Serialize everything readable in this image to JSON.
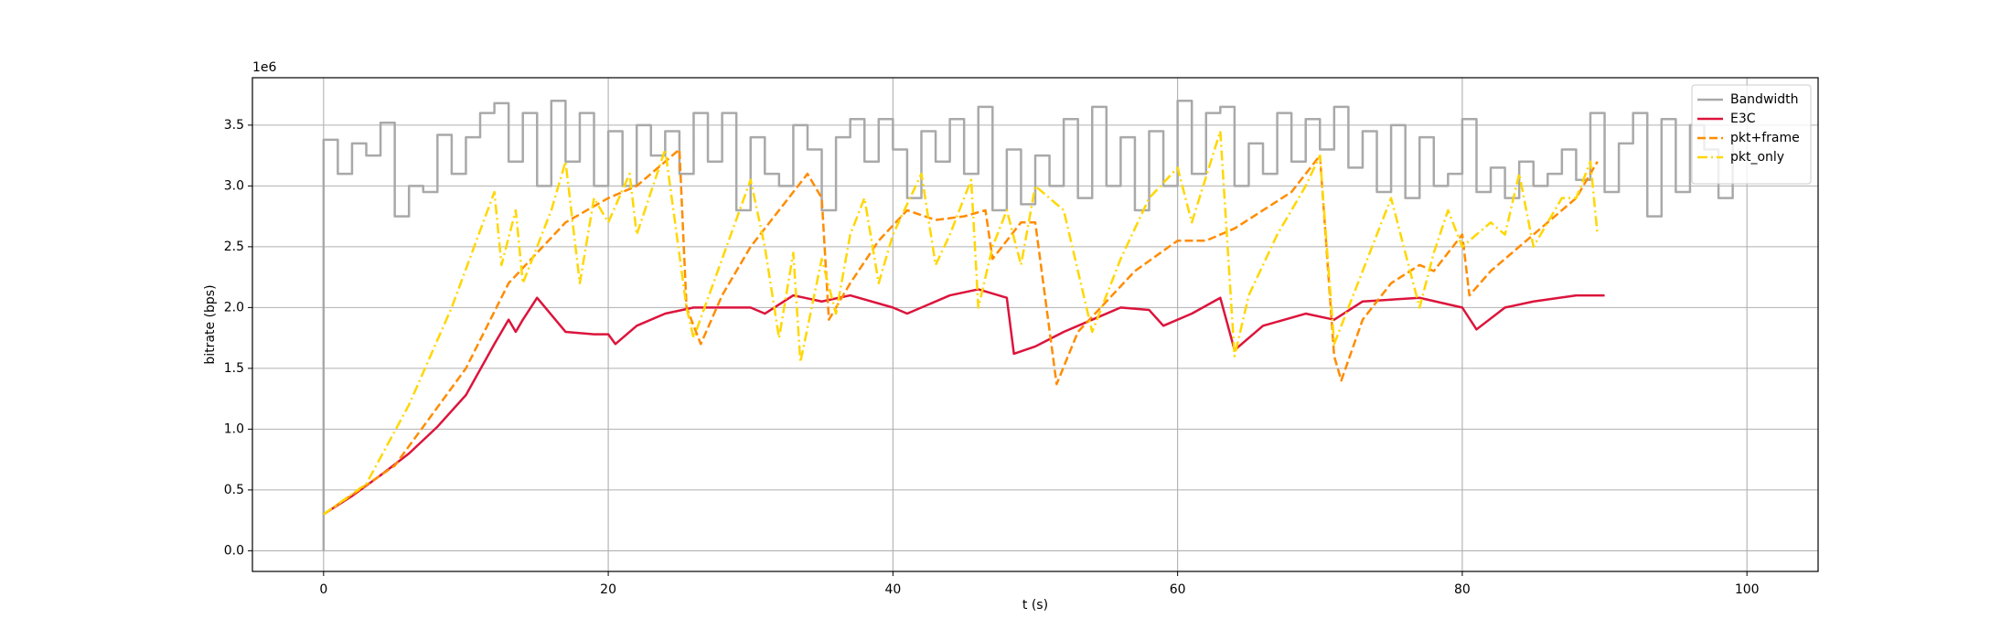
{
  "chart_data": {
    "type": "line",
    "offset_text": "1e6",
    "xlabel": "t (s)",
    "ylabel": "bitrate (bps)",
    "xlim": [
      -5,
      105
    ],
    "ylim": [
      -0.17,
      3.89
    ],
    "xticks": [
      0,
      20,
      40,
      60,
      80,
      100
    ],
    "yticks": [
      {
        "value": 0,
        "label": "0.0"
      },
      0.5,
      {
        "value": 1,
        "label": "1.0"
      },
      1.5,
      {
        "value": 2,
        "label": "2.0"
      },
      2.5,
      {
        "value": 3,
        "label": "3.0"
      },
      3.5
    ],
    "grid": true,
    "legend": "upper right",
    "series": [
      {
        "name": "Bandwidth",
        "color": "#a9a9a9",
        "linestyle": "solid",
        "drawstyle": "steps-post",
        "x": [
          0,
          0,
          1,
          2,
          3,
          4,
          5,
          6,
          7,
          8,
          9,
          10,
          11,
          12,
          13,
          14,
          15,
          16,
          17,
          18,
          19,
          20,
          21,
          22,
          23,
          24,
          25,
          26,
          27,
          28,
          29,
          30,
          31,
          32,
          33,
          34,
          35,
          36,
          37,
          38,
          39,
          40,
          41,
          42,
          43,
          44,
          45,
          46,
          47,
          48,
          49,
          50,
          51,
          52,
          53,
          54,
          55,
          56,
          57,
          58,
          59,
          60,
          61,
          62,
          63,
          64,
          65,
          66,
          67,
          68,
          69,
          70,
          71,
          72,
          73,
          74,
          75,
          76,
          77,
          78,
          79,
          80,
          81,
          82,
          83,
          84,
          85,
          86,
          87,
          88,
          89,
          90,
          91,
          92,
          93,
          94,
          95,
          96,
          97,
          98,
          99
        ],
        "values": [
          0,
          3.38,
          3.1,
          3.35,
          3.25,
          3.52,
          2.75,
          3.0,
          2.95,
          3.42,
          3.1,
          3.4,
          3.6,
          3.68,
          3.2,
          3.6,
          3.0,
          3.7,
          3.2,
          3.6,
          3.0,
          3.45,
          3.0,
          3.5,
          3.25,
          3.45,
          3.1,
          3.6,
          3.2,
          3.6,
          2.8,
          3.4,
          3.1,
          3.0,
          3.5,
          3.3,
          2.8,
          3.4,
          3.55,
          3.2,
          3.55,
          3.3,
          2.9,
          3.45,
          3.2,
          3.55,
          3.1,
          3.65,
          2.8,
          3.3,
          2.85,
          3.25,
          3.0,
          3.55,
          2.9,
          3.65,
          3.0,
          3.4,
          2.8,
          3.45,
          3.0,
          3.7,
          3.1,
          3.6,
          3.65,
          3.0,
          3.35,
          3.1,
          3.6,
          3.2,
          3.55,
          3.3,
          3.65,
          3.15,
          3.45,
          2.95,
          3.5,
          2.9,
          3.4,
          3.0,
          3.1,
          3.55,
          2.95,
          3.15,
          2.9,
          3.2,
          3.0,
          3.1,
          3.3,
          3.05,
          3.6,
          2.95,
          3.35,
          3.6,
          2.75,
          3.55,
          2.95,
          3.5,
          3.3,
          2.9,
          3.35
        ]
      },
      {
        "name": "E3C",
        "color": "#dc143c",
        "linestyle": "solid",
        "x": [
          0,
          2,
          4,
          6,
          8,
          10,
          12,
          13,
          13.5,
          14,
          15,
          17,
          19,
          20,
          20.5,
          22,
          24,
          26,
          30,
          31,
          33,
          35,
          37,
          40,
          41,
          44,
          46,
          48,
          48.5,
          50,
          52,
          54,
          56,
          58,
          59,
          61,
          63,
          64,
          66,
          69,
          71,
          73,
          77,
          80,
          81,
          83,
          85,
          88,
          90
        ],
        "values": [
          0.3,
          0.45,
          0.62,
          0.8,
          1.02,
          1.28,
          1.7,
          1.9,
          1.8,
          1.9,
          2.08,
          1.8,
          1.78,
          1.78,
          1.7,
          1.85,
          1.95,
          2.0,
          2.0,
          1.95,
          2.1,
          2.05,
          2.1,
          2.0,
          1.95,
          2.1,
          2.15,
          2.08,
          1.62,
          1.68,
          1.8,
          1.9,
          2.0,
          1.98,
          1.85,
          1.95,
          2.08,
          1.65,
          1.85,
          1.95,
          1.9,
          2.05,
          2.08,
          2.0,
          1.82,
          2.0,
          2.05,
          2.1,
          2.1
        ]
      },
      {
        "name": "pkt+frame",
        "color": "#ff8c00",
        "linestyle": "dashed",
        "x": [
          0,
          5,
          10,
          13,
          15,
          17,
          20,
          22,
          24,
          25,
          25.5,
          26.5,
          28,
          30,
          32,
          34,
          35,
          35.5,
          37,
          39,
          41,
          43,
          45,
          46.5,
          47,
          49,
          50,
          51.5,
          53,
          55,
          57,
          60,
          62,
          63,
          64,
          66,
          68,
          70,
          71,
          71.5,
          73,
          75,
          77,
          78,
          80,
          80.5,
          82,
          84,
          86,
          88,
          89.5
        ],
        "values": [
          0.3,
          0.7,
          1.5,
          2.2,
          2.45,
          2.7,
          2.9,
          3.0,
          3.2,
          3.3,
          2.0,
          1.7,
          2.1,
          2.5,
          2.8,
          3.1,
          2.9,
          1.9,
          2.2,
          2.55,
          2.8,
          2.72,
          2.75,
          2.8,
          2.4,
          2.7,
          2.7,
          1.37,
          1.8,
          2.05,
          2.3,
          2.55,
          2.55,
          2.6,
          2.65,
          2.8,
          2.95,
          3.25,
          1.6,
          1.4,
          1.9,
          2.2,
          2.35,
          2.3,
          2.6,
          2.1,
          2.3,
          2.5,
          2.7,
          2.9,
          3.2
        ]
      },
      {
        "name": "pkt_only",
        "color": "#ffd700",
        "linestyle": "dashdot",
        "x": [
          0,
          3,
          6,
          9,
          12,
          12.5,
          13.5,
          14,
          16,
          17,
          18,
          19,
          20,
          21.5,
          22,
          24,
          25.5,
          26,
          28,
          30,
          31,
          32,
          33,
          33.5,
          35,
          36,
          37,
          38,
          39,
          40,
          42,
          43,
          44,
          45.5,
          46,
          47,
          48,
          49,
          50,
          52,
          54,
          56,
          58,
          60,
          61,
          63,
          64,
          65,
          67,
          69,
          70,
          71,
          73,
          75,
          76,
          77,
          78,
          79,
          80,
          82,
          83,
          84,
          85,
          86,
          87,
          88,
          89,
          89.5
        ],
        "values": [
          0.3,
          0.55,
          1.2,
          2.0,
          2.95,
          2.35,
          2.8,
          2.2,
          2.8,
          3.2,
          2.2,
          2.9,
          2.7,
          3.1,
          2.6,
          3.3,
          2.0,
          1.75,
          2.4,
          3.05,
          2.5,
          1.75,
          2.45,
          1.55,
          2.4,
          1.95,
          2.6,
          2.9,
          2.2,
          2.6,
          3.1,
          2.35,
          2.6,
          3.05,
          2.0,
          2.5,
          2.8,
          2.35,
          3.0,
          2.8,
          1.8,
          2.4,
          2.9,
          3.15,
          2.7,
          3.45,
          1.6,
          2.1,
          2.6,
          3.0,
          3.25,
          1.7,
          2.3,
          2.9,
          2.45,
          2.0,
          2.45,
          2.8,
          2.5,
          2.7,
          2.6,
          3.1,
          2.5,
          2.7,
          2.9,
          2.9,
          3.2,
          2.6
        ]
      }
    ]
  }
}
